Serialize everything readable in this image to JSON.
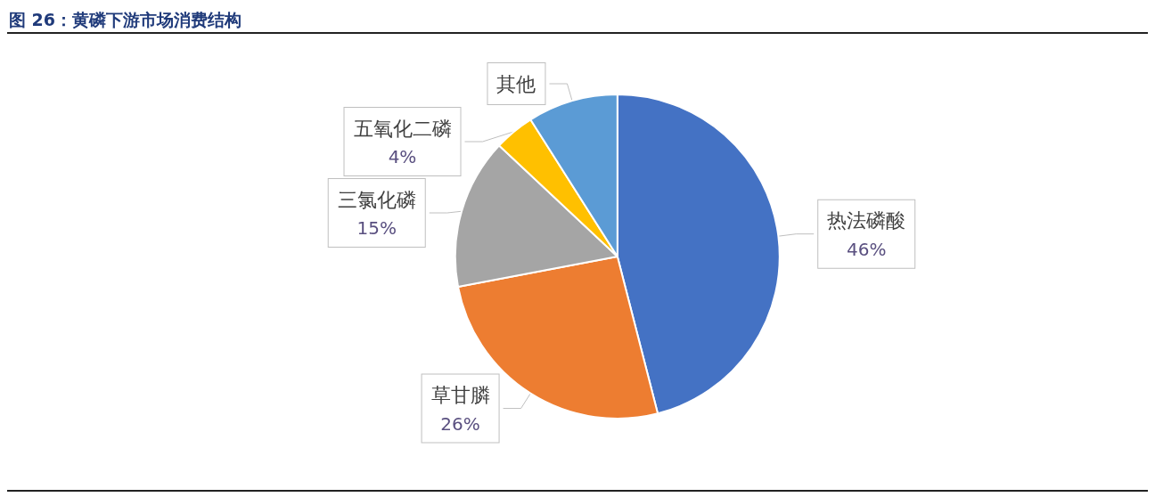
{
  "chart_data": {
    "type": "pie",
    "title": "图 26：黄磷下游市场消费结构",
    "categories": [
      "热法磷酸",
      "草甘膦",
      "三氯化磷",
      "五氧化二磷",
      "其他"
    ],
    "values": [
      46,
      26,
      15,
      4,
      9
    ],
    "value_labels": [
      "46%",
      "26%",
      "15%",
      "4%",
      null
    ],
    "colors": [
      "#4472c4",
      "#ed7d31",
      "#a5a5a5",
      "#ffc000",
      "#5b9bd5"
    ],
    "legend": false
  }
}
